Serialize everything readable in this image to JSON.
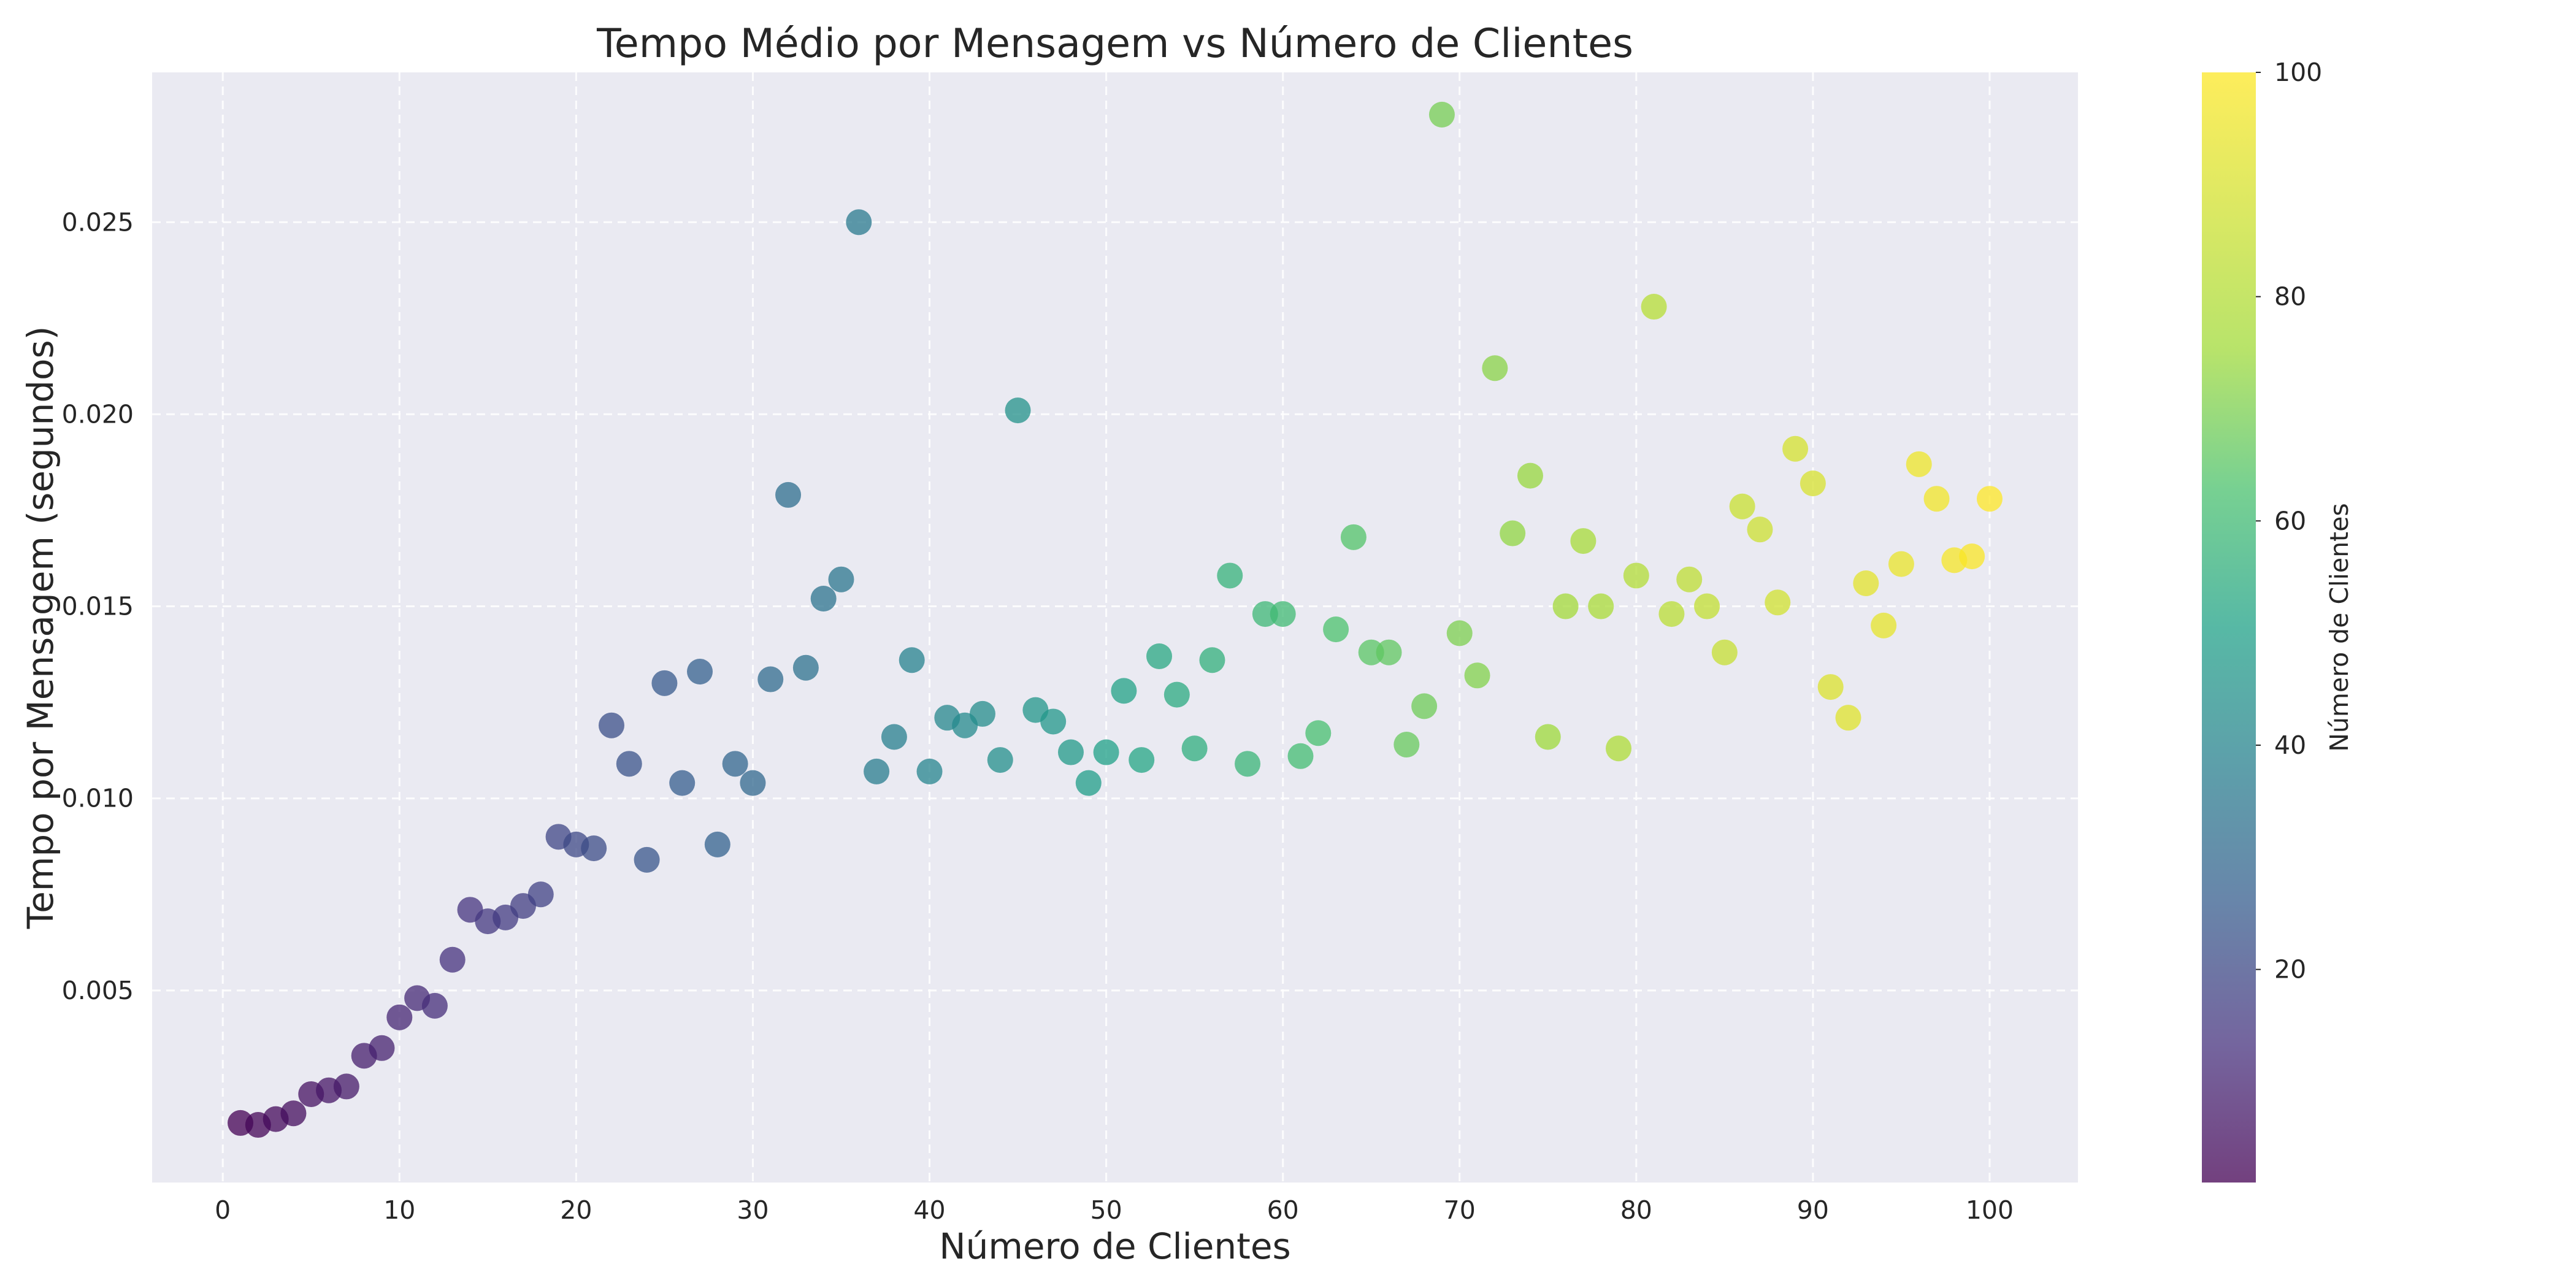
{
  "chart_data": {
    "type": "scatter",
    "title": "Tempo Médio por Mensagem vs Número de Clientes",
    "xlabel": "Número de Clientes",
    "ylabel": "Tempo por Mensagem (segundos)",
    "xlim": [
      -4,
      105
    ],
    "ylim": [
      0,
      0.0289
    ],
    "xticks": [
      0,
      10,
      20,
      30,
      40,
      50,
      60,
      70,
      80,
      90,
      100
    ],
    "xtick_labels": [
      "0",
      "10",
      "20",
      "30",
      "40",
      "50",
      "60",
      "70",
      "80",
      "90",
      "100"
    ],
    "yticks": [
      0.005,
      0.01,
      0.015,
      0.02,
      0.025
    ],
    "ytick_labels": [
      "0.005",
      "0.010",
      "0.015",
      "0.020",
      "0.025"
    ],
    "grid": true,
    "plot_background": "#eaeaf2",
    "colormap": "viridis",
    "colorbar": {
      "label": "Número de Clientes",
      "range": [
        1,
        100
      ],
      "ticks": [
        20,
        40,
        60,
        80,
        100
      ],
      "tick_labels": [
        "20",
        "40",
        "60",
        "80",
        "100"
      ]
    },
    "x": [
      1,
      2,
      3,
      4,
      5,
      6,
      7,
      8,
      9,
      10,
      11,
      12,
      13,
      14,
      15,
      16,
      17,
      18,
      19,
      20,
      21,
      22,
      23,
      24,
      25,
      26,
      27,
      28,
      29,
      30,
      31,
      32,
      33,
      34,
      35,
      36,
      37,
      38,
      39,
      40,
      41,
      42,
      43,
      44,
      45,
      46,
      47,
      48,
      49,
      50,
      51,
      52,
      53,
      54,
      55,
      56,
      57,
      58,
      59,
      60,
      61,
      62,
      63,
      64,
      65,
      66,
      67,
      68,
      69,
      70,
      71,
      72,
      73,
      74,
      75,
      76,
      77,
      78,
      79,
      80,
      81,
      82,
      83,
      84,
      85,
      86,
      87,
      88,
      89,
      90,
      91,
      92,
      93,
      94,
      95,
      96,
      97,
      98,
      99,
      100
    ],
    "y": [
      0.00155,
      0.0015,
      0.00165,
      0.0018,
      0.0023,
      0.0024,
      0.0025,
      0.0033,
      0.0035,
      0.0043,
      0.0048,
      0.0046,
      0.0058,
      0.0071,
      0.0068,
      0.0069,
      0.0072,
      0.0075,
      0.009,
      0.0088,
      0.0087,
      0.0119,
      0.0109,
      0.0084,
      0.013,
      0.0104,
      0.0133,
      0.0088,
      0.0109,
      0.0104,
      0.0131,
      0.0179,
      0.0134,
      0.0152,
      0.0157,
      0.025,
      0.0107,
      0.0116,
      0.0136,
      0.0107,
      0.0121,
      0.0119,
      0.0122,
      0.011,
      0.0201,
      0.0123,
      0.012,
      0.0112,
      0.0104,
      0.0112,
      0.0128,
      0.011,
      0.0137,
      0.0127,
      0.0113,
      0.0136,
      0.0158,
      0.0109,
      0.0148,
      0.0148,
      0.0111,
      0.0117,
      0.0144,
      0.0168,
      0.0138,
      0.0138,
      0.0114,
      0.0124,
      0.0278,
      0.0143,
      0.0132,
      0.0212,
      0.0169,
      0.0184,
      0.0116,
      0.015,
      0.0167,
      0.015,
      0.0113,
      0.0158,
      0.0228,
      0.0148,
      0.0157,
      0.015,
      0.0138,
      0.0176,
      0.017,
      0.0151,
      0.0191,
      0.0182,
      0.0129,
      0.0121,
      0.0156,
      0.0145,
      0.0161,
      0.0187,
      0.0178,
      0.0162,
      0.0163,
      0.0178
    ]
  }
}
